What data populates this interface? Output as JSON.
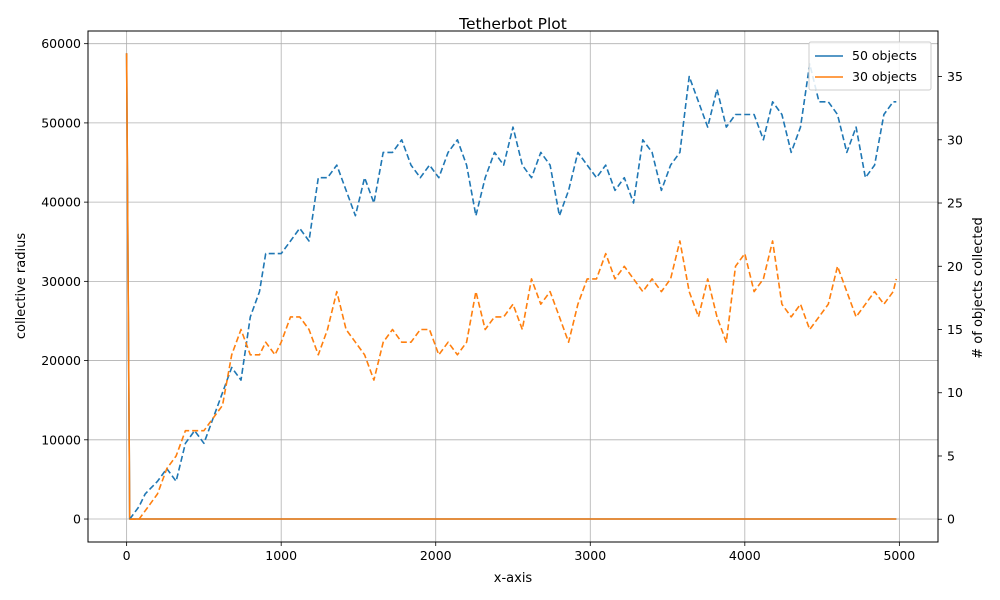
{
  "chart_data": {
    "type": "line",
    "title": "Tetherbot Plot",
    "xlabel": "x-axis",
    "ylabel": "collective radius",
    "y2label": "# of objects collected",
    "xlim": [
      -250,
      5250
    ],
    "ylim": [
      -2900,
      61600
    ],
    "y2lim": [
      -1.8,
      38.6
    ],
    "x_ticks": [
      0,
      1000,
      2000,
      3000,
      4000,
      5000
    ],
    "y_ticks": [
      0,
      10000,
      20000,
      30000,
      40000,
      50000,
      60000
    ],
    "y2_ticks": [
      0,
      5,
      10,
      15,
      20,
      25,
      30,
      35
    ],
    "grid": true,
    "legend": {
      "position": "top-right",
      "entries": [
        "50 objects",
        "30 objects"
      ]
    },
    "colors": {
      "50 objects": "#1f77b4",
      "30 objects": "#ff7f0e"
    },
    "series": [
      {
        "name": "50 objects",
        "axis": "left",
        "style": "solid",
        "color": "#1f77b4",
        "x": [
          0,
          20,
          4980
        ],
        "y": [
          58800,
          0,
          0
        ]
      },
      {
        "name": "30 objects",
        "axis": "left",
        "style": "solid",
        "color": "#ff7f0e",
        "x": [
          0,
          20,
          4980
        ],
        "y": [
          58800,
          0,
          0
        ]
      },
      {
        "name": "50 objects",
        "axis": "right",
        "style": "dashed",
        "color": "#1f77b4",
        "x": [
          20,
          80,
          120,
          200,
          260,
          320,
          380,
          440,
          500,
          560,
          620,
          680,
          740,
          800,
          860,
          900,
          960,
          1000,
          1060,
          1120,
          1180,
          1240,
          1300,
          1360,
          1420,
          1480,
          1540,
          1600,
          1660,
          1720,
          1780,
          1840,
          1900,
          1960,
          2020,
          2080,
          2140,
          2200,
          2260,
          2320,
          2380,
          2440,
          2500,
          2560,
          2620,
          2680,
          2740,
          2800,
          2860,
          2920,
          2980,
          3040,
          3100,
          3160,
          3220,
          3280,
          3340,
          3400,
          3460,
          3520,
          3580,
          3640,
          3700,
          3760,
          3820,
          3880,
          3940,
          4000,
          4060,
          4120,
          4180,
          4240,
          4300,
          4360,
          4420,
          4480,
          4540,
          4600,
          4660,
          4720,
          4780,
          4840,
          4900,
          4960,
          4980
        ],
        "y": [
          0,
          1,
          2,
          3,
          4,
          3,
          6,
          7,
          6,
          8,
          10,
          12,
          11,
          16,
          18,
          21,
          21,
          21,
          22,
          23,
          22,
          27,
          27,
          28,
          26,
          24,
          27,
          25,
          29,
          29,
          30,
          28,
          27,
          28,
          27,
          29,
          30,
          28,
          24,
          27,
          29,
          28,
          31,
          28,
          27,
          29,
          28,
          24,
          26,
          29,
          28,
          27,
          28,
          26,
          27,
          25,
          30,
          29,
          26,
          28,
          29,
          35,
          33,
          31,
          34,
          31,
          32,
          32,
          32,
          30,
          33,
          32,
          29,
          31,
          36,
          33,
          33,
          32,
          29,
          31,
          27,
          28,
          32,
          33,
          33
        ]
      },
      {
        "name": "30 objects",
        "axis": "right",
        "style": "dashed",
        "color": "#ff7f0e",
        "x": [
          20,
          80,
          140,
          200,
          260,
          320,
          380,
          440,
          500,
          560,
          620,
          680,
          740,
          800,
          860,
          900,
          960,
          1000,
          1060,
          1120,
          1180,
          1240,
          1300,
          1360,
          1420,
          1480,
          1540,
          1600,
          1660,
          1720,
          1780,
          1840,
          1900,
          1960,
          2020,
          2080,
          2140,
          2200,
          2260,
          2320,
          2380,
          2440,
          2500,
          2560,
          2620,
          2680,
          2740,
          2800,
          2860,
          2920,
          2980,
          3040,
          3100,
          3160,
          3220,
          3280,
          3340,
          3400,
          3460,
          3520,
          3580,
          3640,
          3700,
          3760,
          3820,
          3880,
          3940,
          4000,
          4060,
          4120,
          4180,
          4240,
          4300,
          4360,
          4420,
          4480,
          4540,
          4600,
          4660,
          4720,
          4780,
          4840,
          4900,
          4960,
          4980
        ],
        "y": [
          0,
          0,
          1,
          2,
          4,
          5,
          7,
          7,
          7,
          8,
          9,
          13,
          15,
          13,
          13,
          14,
          13,
          14,
          16,
          16,
          15,
          13,
          15,
          18,
          15,
          14,
          13,
          11,
          14,
          15,
          14,
          14,
          15,
          15,
          13,
          14,
          13,
          14,
          18,
          15,
          16,
          16,
          17,
          15,
          19,
          17,
          18,
          16,
          14,
          17,
          19,
          19,
          21,
          19,
          20,
          19,
          18,
          19,
          18,
          19,
          22,
          18,
          16,
          19,
          16,
          14,
          20,
          21,
          18,
          19,
          22,
          17,
          16,
          17,
          15,
          16,
          17,
          20,
          18,
          16,
          17,
          18,
          17,
          18,
          19
        ]
      }
    ]
  }
}
